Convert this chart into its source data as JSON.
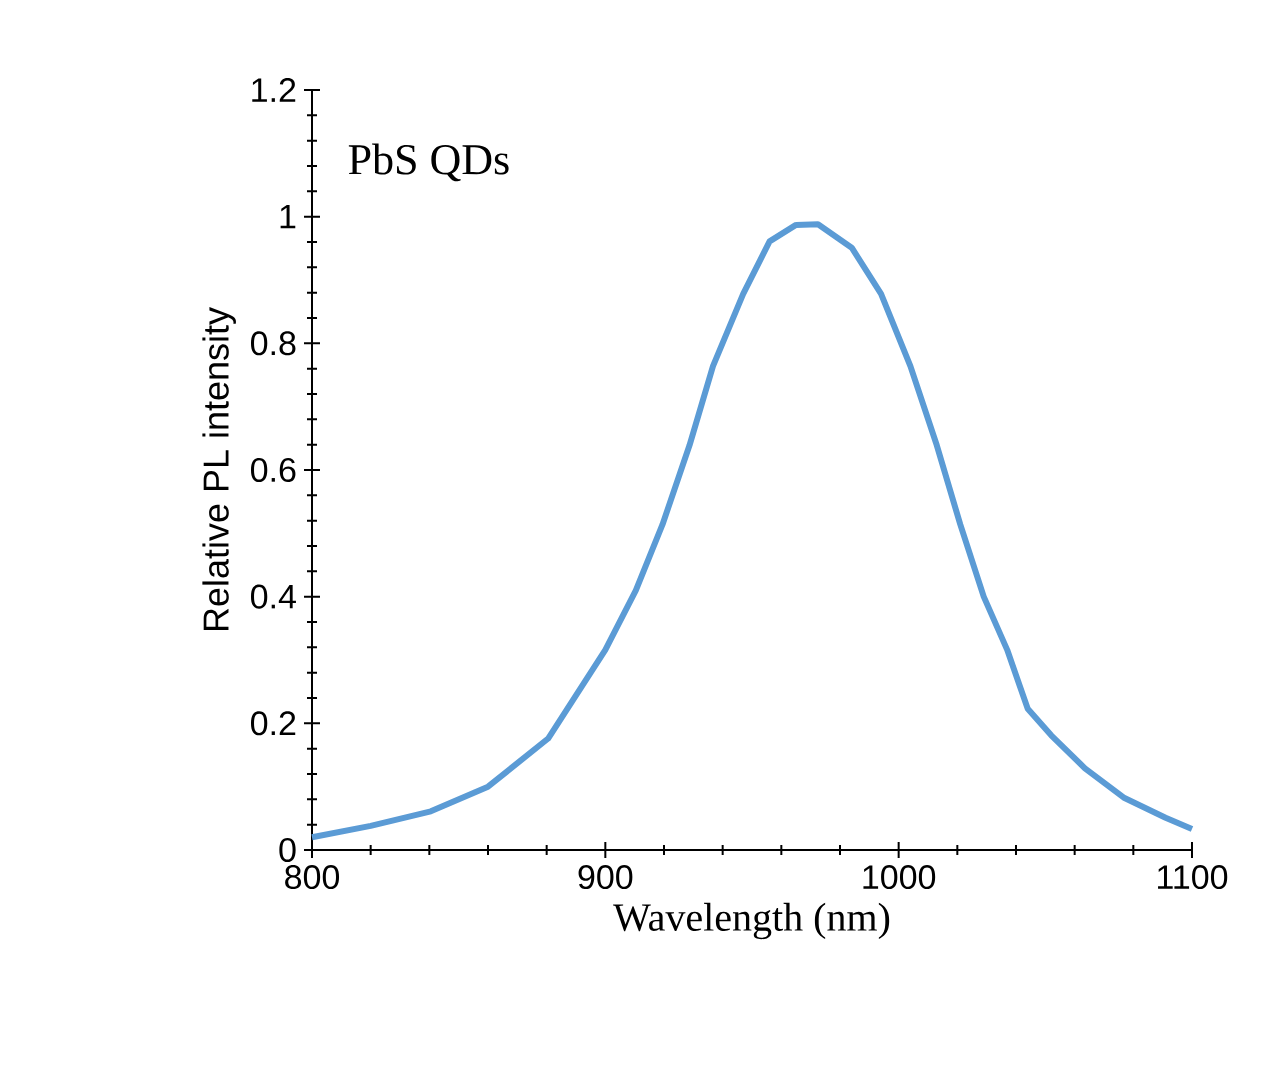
{
  "chart_data": {
    "type": "line",
    "xlabel": "Wavelength (nm)",
    "ylabel": "Relative PL intensity",
    "annotations": [
      "PbS QDs"
    ],
    "x": [
      800,
      820,
      840.5,
      860,
      880.5,
      900,
      910.4,
      919.5,
      928.7,
      936.7,
      947,
      956,
      965,
      972.5,
      984,
      994,
      1004,
      1013,
      1021,
      1029,
      1037,
      1044,
      1052,
      1063.5,
      1077,
      1091,
      1100
    ],
    "series": [
      {
        "color": "#5b9bd5",
        "values": [
          0.02,
          0.038,
          0.061,
          0.1,
          0.176,
          0.316,
          0.41,
          0.514,
          0.639,
          0.764,
          0.878,
          0.961,
          0.987,
          0.988,
          0.951,
          0.878,
          0.764,
          0.639,
          0.514,
          0.4,
          0.316,
          0.223,
          0.181,
          0.129,
          0.082,
          0.051,
          0.033
        ]
      }
    ],
    "xlim": [
      800,
      1100
    ],
    "xticks": [
      800,
      900,
      1000,
      1100
    ],
    "ylim": [
      0,
      1.2
    ],
    "yticks": [
      0,
      0.2,
      0.4,
      0.6,
      0.8,
      1,
      1.2
    ],
    "grid": false,
    "marker": "none",
    "line_style": "solid"
  }
}
